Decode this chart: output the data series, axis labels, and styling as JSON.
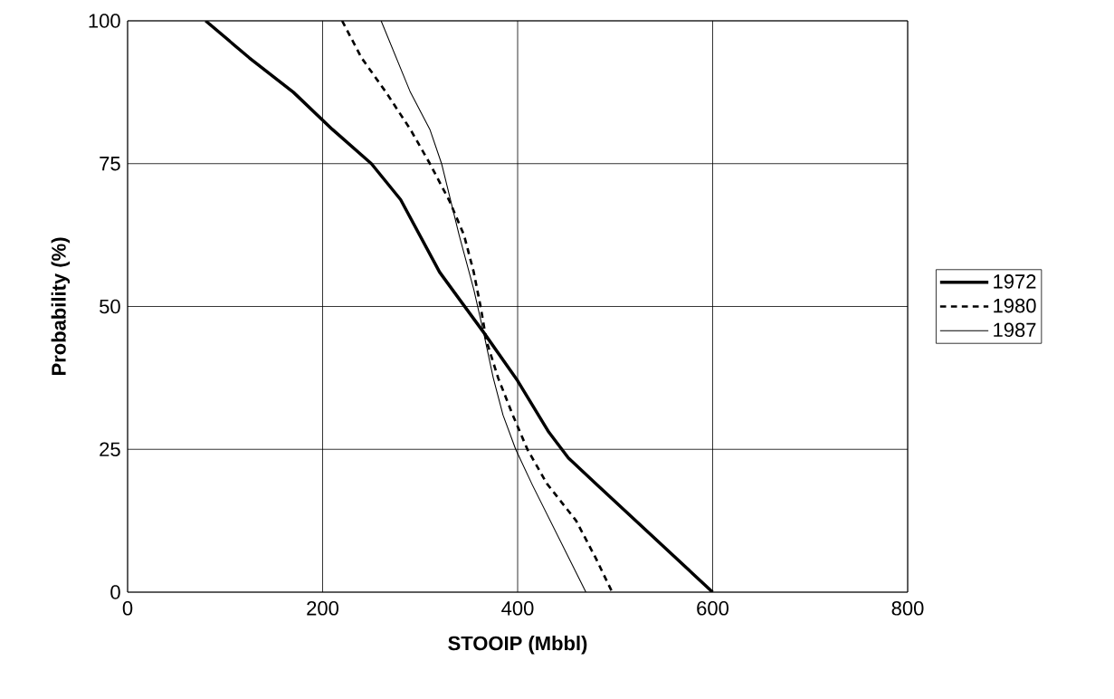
{
  "chart_data": {
    "type": "line",
    "xlabel": "STOOIP (Mbbl)",
    "ylabel": "Probability (%)",
    "xlim": [
      0,
      800
    ],
    "xticks": [
      0,
      200,
      400,
      600,
      800
    ],
    "ylim": [
      0,
      100
    ],
    "yticks": [
      0,
      25,
      50,
      75,
      100
    ],
    "grid": true,
    "legend": "right",
    "marker": "none",
    "series": [
      {
        "name": "1972",
        "color": "#000000",
        "line_style": "solid",
        "x": [
          80,
          125,
          170,
          210,
          250,
          280,
          320,
          365,
          400,
          432,
          452,
          480,
          600
        ],
        "values": [
          100,
          93.5,
          87.5,
          81,
          75,
          68.7,
          56,
          45.5,
          37,
          28,
          23.5,
          19,
          0
        ]
      },
      {
        "name": "1980",
        "color": "#000000",
        "line_style": "dashed",
        "x": [
          220,
          240,
          265,
          290,
          310,
          330,
          345,
          355,
          362,
          368,
          380,
          395,
          410,
          430,
          460,
          480,
          497
        ],
        "values": [
          100,
          93.5,
          87.5,
          81,
          75,
          68.5,
          62.5,
          56,
          50,
          44,
          37.5,
          31,
          25,
          19,
          12.5,
          6,
          0
        ]
      },
      {
        "name": "1987",
        "color": "#000000",
        "line_style": "solid",
        "x": [
          260,
          290,
          310,
          322,
          340,
          355,
          365,
          375,
          385,
          398,
          415,
          470
        ],
        "values": [
          100,
          87.5,
          81,
          75,
          62.5,
          53,
          45.5,
          37.5,
          31,
          25,
          18.8,
          0
        ]
      }
    ]
  }
}
